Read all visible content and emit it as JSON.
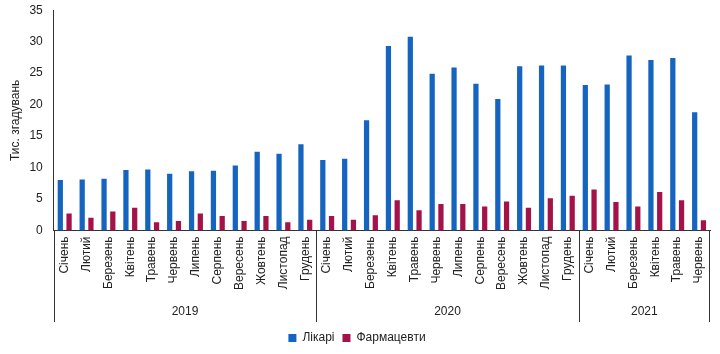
{
  "chart_data": {
    "type": "bar",
    "y_label": "Тис. згадувань",
    "categories": [
      "Січень",
      "Лютий",
      "Березень",
      "Квітень",
      "Травень",
      "Червень",
      "Липень",
      "Серпень",
      "Вересень",
      "Жовтень",
      "Листопад",
      "Грудень",
      "Січень",
      "Лютий",
      "Березень",
      "Квітень",
      "Травень",
      "Червень",
      "Липень",
      "Серпень",
      "Вересень",
      "Жовтень",
      "Листопад",
      "Грудень",
      "Січень",
      "Лютий",
      "Березень",
      "Квітень",
      "Травень",
      "Червень"
    ],
    "category_groups": [
      "2019",
      "2019",
      "2019",
      "2019",
      "2019",
      "2019",
      "2019",
      "2019",
      "2019",
      "2019",
      "2019",
      "2019",
      "2020",
      "2020",
      "2020",
      "2020",
      "2020",
      "2020",
      "2020",
      "2020",
      "2020",
      "2020",
      "2020",
      "2020",
      "2021",
      "2021",
      "2021",
      "2021",
      "2021",
      "2021"
    ],
    "series": [
      {
        "name": "Лікарі",
        "color": "#1565c0",
        "values": [
          8.0,
          8.1,
          8.2,
          9.6,
          9.7,
          9.0,
          9.4,
          9.5,
          10.3,
          12.5,
          12.2,
          13.7,
          11.2,
          11.4,
          17.5,
          29.3,
          30.8,
          24.9,
          25.9,
          23.3,
          20.9,
          26.1,
          26.2,
          26.2,
          23.1,
          23.2,
          27.8,
          27.1,
          27.4,
          18.8
        ]
      },
      {
        "name": "Фармацевти",
        "color": "#a3134a",
        "values": [
          2.7,
          2.0,
          3.0,
          3.6,
          1.3,
          1.5,
          2.7,
          2.3,
          1.5,
          2.3,
          1.3,
          1.7,
          2.3,
          1.7,
          2.4,
          4.8,
          3.2,
          4.2,
          4.2,
          3.8,
          4.6,
          3.6,
          5.1,
          5.5,
          6.5,
          4.5,
          3.8,
          6.1,
          4.8,
          1.6
        ]
      }
    ],
    "ylim": [
      0,
      35
    ],
    "yticks": [
      0,
      5,
      10,
      15,
      20,
      25,
      30,
      35
    ],
    "grid": false,
    "legend": "bottom"
  }
}
